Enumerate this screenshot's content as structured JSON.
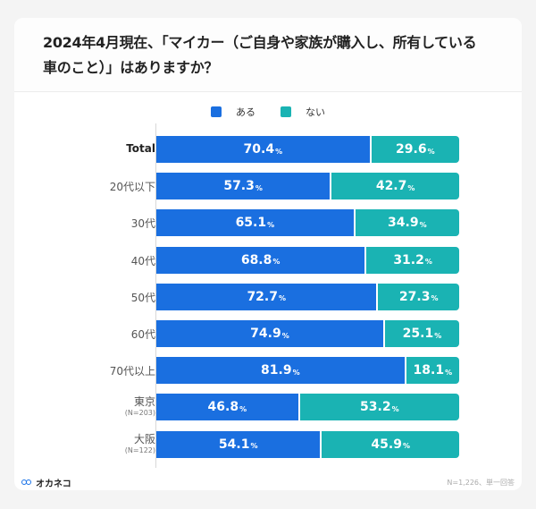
{
  "title": "2024年4月現在、「マイカー（ご自身や家族が購入し、所有している車のこと）」はありますか？",
  "legend": [
    {
      "label": "ある",
      "color": "#1a6fe0"
    },
    {
      "label": "ない",
      "color": "#1ab3b3"
    }
  ],
  "footer": {
    "logo_text": "オカネコ",
    "note": "N=1,226、単一回答"
  },
  "chart_data": {
    "type": "bar",
    "orientation": "horizontal",
    "stacked": true,
    "title": "2024年4月現在、「マイカー（ご自身や家族が購入し、所有している車のこと）」はありますか？",
    "categories": [
      "Total",
      "20代以下",
      "30代",
      "40代",
      "50代",
      "60代",
      "70代以上",
      "東京",
      "大阪"
    ],
    "category_sublabels": [
      "",
      "",
      "",
      "",
      "",
      "",
      "",
      "(N=203)",
      "(N=122)"
    ],
    "series": [
      {
        "name": "ある",
        "color": "#1a6fe0",
        "values": [
          70.4,
          57.3,
          65.1,
          68.8,
          72.7,
          74.9,
          81.9,
          46.8,
          54.1
        ]
      },
      {
        "name": "ない",
        "color": "#1ab3b3",
        "values": [
          29.6,
          42.7,
          34.9,
          31.2,
          27.3,
          25.1,
          18.1,
          53.2,
          45.9
        ]
      }
    ],
    "unit": "%",
    "xlim": [
      0,
      100
    ],
    "legend_position": "top-center",
    "grid": false,
    "note": "N=1,226、単一回答"
  }
}
